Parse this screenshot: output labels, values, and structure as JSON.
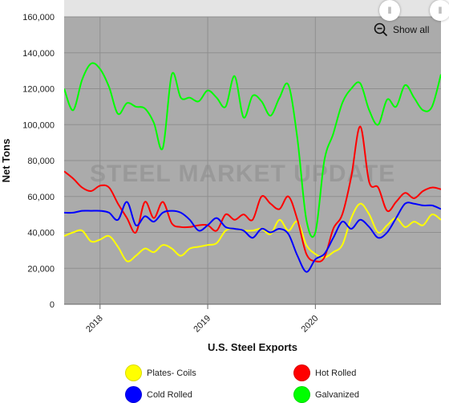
{
  "show_all_label": "Show all",
  "watermark": "STEEL MARKET UPDATE",
  "colors": {
    "plot_bg": "#ababab",
    "grid": "#8f8f8f",
    "navigator": "#e4e4e4"
  },
  "chart_data": {
    "type": "line",
    "title": "",
    "xlabel": "U.S. Steel Exports",
    "ylabel": "Net Tons",
    "ylim": [
      0,
      160000
    ],
    "yticks": [
      0,
      20000,
      40000,
      60000,
      80000,
      100000,
      120000,
      140000,
      160000
    ],
    "ytick_labels": [
      "0",
      "20,000",
      "40,000",
      "60,000",
      "80,000",
      "100,000",
      "120,000",
      "140,000",
      "160,000"
    ],
    "xlim": [
      "2017-09",
      "2021-03"
    ],
    "xticks": [
      "2018",
      "2019",
      "2020"
    ],
    "x": [
      "2017-09",
      "2017-10",
      "2017-11",
      "2017-12",
      "2018-01",
      "2018-02",
      "2018-03",
      "2018-04",
      "2018-05",
      "2018-06",
      "2018-07",
      "2018-08",
      "2018-09",
      "2018-10",
      "2018-11",
      "2018-12",
      "2019-01",
      "2019-02",
      "2019-03",
      "2019-04",
      "2019-05",
      "2019-06",
      "2019-07",
      "2019-08",
      "2019-09",
      "2019-10",
      "2019-11",
      "2019-12",
      "2020-01",
      "2020-02",
      "2020-03",
      "2020-04",
      "2020-05",
      "2020-06",
      "2020-07",
      "2020-08",
      "2020-09",
      "2020-10",
      "2020-11",
      "2020-12",
      "2021-01",
      "2021-02",
      "2021-03"
    ],
    "series": [
      {
        "name": "Plates- Coils",
        "color": "#ffff00",
        "values": [
          38000,
          40000,
          41000,
          35000,
          36000,
          38000,
          32000,
          24000,
          27000,
          31000,
          29000,
          33000,
          31000,
          27000,
          31000,
          32000,
          33000,
          34000,
          41000,
          42000,
          41000,
          41000,
          42000,
          39000,
          47000,
          41000,
          46000,
          33000,
          28000,
          26000,
          29000,
          33000,
          48000,
          56000,
          50000,
          40000,
          44000,
          48000,
          43000,
          46000,
          44000,
          50000,
          47000
        ]
      },
      {
        "name": "Hot Rolled",
        "color": "#ff0000",
        "values": [
          74000,
          70000,
          65000,
          63000,
          66000,
          65000,
          56000,
          48000,
          40000,
          57000,
          48000,
          57000,
          45000,
          43000,
          43000,
          44000,
          44000,
          41000,
          50000,
          47000,
          50000,
          47000,
          60000,
          56000,
          53000,
          60000,
          47000,
          28000,
          24000,
          26000,
          42000,
          50000,
          71000,
          99000,
          68000,
          65000,
          52000,
          57000,
          62000,
          59000,
          63000,
          65000,
          64000
        ]
      },
      {
        "name": "Cold Rolled",
        "color": "#0000ff",
        "values": [
          51000,
          51000,
          52000,
          52000,
          52000,
          51000,
          47000,
          57000,
          44000,
          49000,
          46000,
          51000,
          52000,
          51000,
          47000,
          41000,
          44000,
          48000,
          43000,
          42000,
          41000,
          37000,
          42000,
          40000,
          42000,
          39000,
          27000,
          18000,
          25000,
          28000,
          37000,
          46000,
          42000,
          47000,
          43000,
          37000,
          40000,
          48000,
          56000,
          56000,
          55000,
          55000,
          53000
        ]
      },
      {
        "name": "Galvanized",
        "color": "#00ff00",
        "values": [
          120000,
          108000,
          125000,
          134000,
          131000,
          121000,
          106000,
          112000,
          110000,
          109000,
          101000,
          87000,
          128000,
          115000,
          115000,
          113000,
          119000,
          115000,
          110000,
          127000,
          104000,
          116000,
          113000,
          105000,
          115000,
          122000,
          92000,
          47000,
          40000,
          80000,
          95000,
          112000,
          120000,
          123000,
          108000,
          100000,
          114000,
          110000,
          122000,
          115000,
          108000,
          110000,
          128000
        ]
      }
    ]
  }
}
